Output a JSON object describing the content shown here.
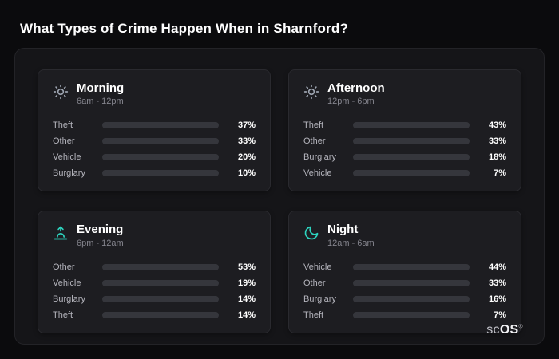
{
  "page": {
    "title": "What Types of Crime Happen When in Sharnford?",
    "brand": {
      "prefix": "sc",
      "suffix": "OS",
      "reg": "®"
    }
  },
  "colors": {
    "purple": "#a855f7",
    "slate": "#64748b",
    "blue": "#3b82f6",
    "orange": "#ed8022"
  },
  "chart_data": [
    {
      "type": "bar",
      "title": "Morning",
      "subtitle": "6am - 12pm",
      "icon": "sun-icon",
      "xlim": [
        0,
        100
      ],
      "rows": [
        {
          "label": "Theft",
          "value": 37,
          "display": "37%",
          "color": "purple"
        },
        {
          "label": "Other",
          "value": 33,
          "display": "33%",
          "color": "slate"
        },
        {
          "label": "Vehicle",
          "value": 20,
          "display": "20%",
          "color": "blue"
        },
        {
          "label": "Burglary",
          "value": 10,
          "display": "10%",
          "color": "orange"
        }
      ]
    },
    {
      "type": "bar",
      "title": "Afternoon",
      "subtitle": "12pm - 6pm",
      "icon": "sun-icon",
      "xlim": [
        0,
        100
      ],
      "rows": [
        {
          "label": "Theft",
          "value": 43,
          "display": "43%",
          "color": "purple"
        },
        {
          "label": "Other",
          "value": 33,
          "display": "33%",
          "color": "slate"
        },
        {
          "label": "Burglary",
          "value": 18,
          "display": "18%",
          "color": "orange"
        },
        {
          "label": "Vehicle",
          "value": 7,
          "display": "7%",
          "color": "blue"
        }
      ]
    },
    {
      "type": "bar",
      "title": "Evening",
      "subtitle": "6pm - 12am",
      "icon": "sunset-icon",
      "xlim": [
        0,
        100
      ],
      "rows": [
        {
          "label": "Other",
          "value": 53,
          "display": "53%",
          "color": "slate"
        },
        {
          "label": "Vehicle",
          "value": 19,
          "display": "19%",
          "color": "blue"
        },
        {
          "label": "Burglary",
          "value": 14,
          "display": "14%",
          "color": "orange"
        },
        {
          "label": "Theft",
          "value": 14,
          "display": "14%",
          "color": "purple"
        }
      ]
    },
    {
      "type": "bar",
      "title": "Night",
      "subtitle": "12am - 6am",
      "icon": "moon-icon",
      "xlim": [
        0,
        100
      ],
      "rows": [
        {
          "label": "Vehicle",
          "value": 44,
          "display": "44%",
          "color": "blue"
        },
        {
          "label": "Other",
          "value": 33,
          "display": "33%",
          "color": "slate"
        },
        {
          "label": "Burglary",
          "value": 16,
          "display": "16%",
          "color": "orange"
        },
        {
          "label": "Theft",
          "value": 7,
          "display": "7%",
          "color": "purple"
        }
      ]
    }
  ]
}
